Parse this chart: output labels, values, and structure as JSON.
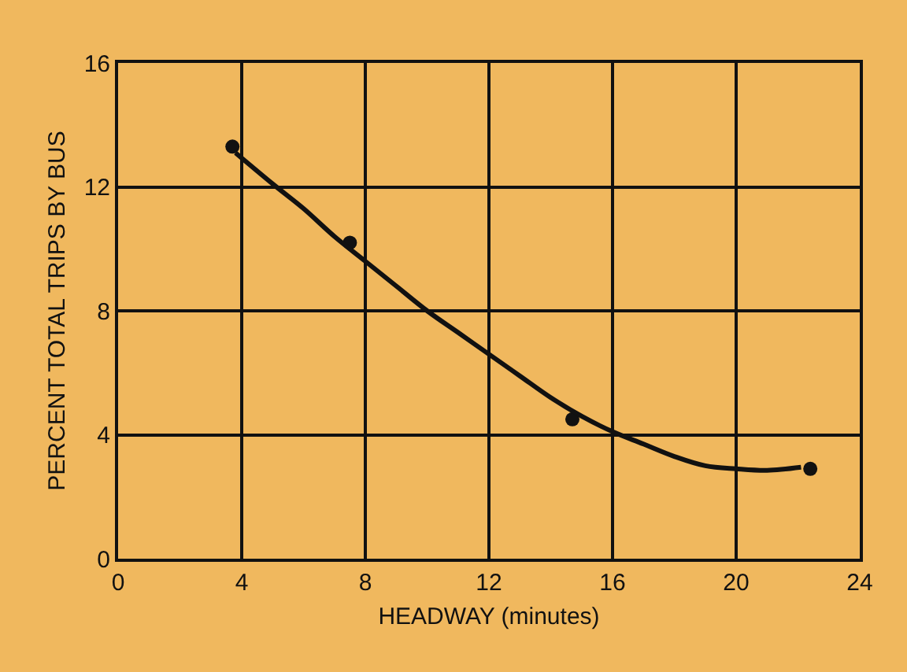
{
  "chart_data": {
    "type": "scatter",
    "xlabel": "HEADWAY (minutes)",
    "ylabel": "PERCENT TOTAL TRIPS BY BUS",
    "xlim": [
      0,
      24
    ],
    "xticks": [
      0,
      4,
      8,
      12,
      16,
      20,
      24
    ],
    "ylim": [
      0,
      16
    ],
    "yticks": [
      0,
      4,
      8,
      12,
      16
    ],
    "grid": true,
    "legend": false,
    "series": [
      {
        "color": "#111111",
        "marker": "circle",
        "x": [
          3.7,
          7.5,
          14.7,
          22.4
        ],
        "values": [
          13.3,
          10.2,
          4.5,
          2.9
        ]
      },
      {
        "type": "line",
        "color": "#111111",
        "marker": "none",
        "line_style": "solid",
        "x": [
          3.8,
          5,
          6,
          7,
          8,
          9,
          10,
          11,
          12,
          13,
          14,
          15,
          16,
          17,
          18,
          19,
          20,
          21,
          22.1
        ],
        "values": [
          13.1,
          12.1,
          11.3,
          10.4,
          9.6,
          8.8,
          8.0,
          7.3,
          6.6,
          5.9,
          5.2,
          4.6,
          4.1,
          3.7,
          3.3,
          3.0,
          2.9,
          2.85,
          2.95
        ]
      }
    ]
  }
}
